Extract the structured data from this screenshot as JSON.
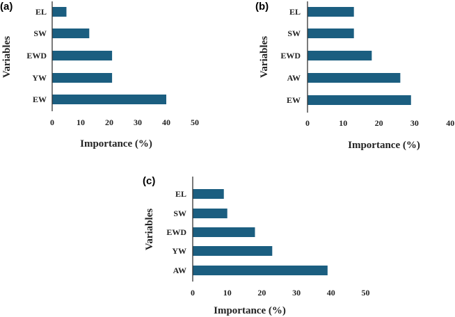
{
  "bar_color": "#1b5e80",
  "chart_data": [
    {
      "type": "bar",
      "orientation": "horizontal",
      "panel": "(a)",
      "categories": [
        "EL",
        "SW",
        "EWD",
        "YW",
        "EW"
      ],
      "values": [
        5,
        13,
        21,
        21,
        40
      ],
      "xlabel": "Importance (%)",
      "ylabel": "Variables",
      "xlim": [
        0,
        50
      ],
      "xticks": [
        "0",
        "10",
        "20",
        "30",
        "40",
        "50"
      ],
      "grid": false,
      "legend": "none"
    },
    {
      "type": "bar",
      "orientation": "horizontal",
      "panel": "(b)",
      "categories": [
        "EL",
        "SW",
        "EWD",
        "AW",
        "EW"
      ],
      "values": [
        13,
        13,
        18,
        26,
        29
      ],
      "xlabel": "Importance (%)",
      "ylabel": "Variables",
      "xlim": [
        0,
        40
      ],
      "xticks": [
        "0",
        "10",
        "20",
        "30",
        "40"
      ],
      "grid": false,
      "legend": "none"
    },
    {
      "type": "bar",
      "orientation": "horizontal",
      "panel": "(c)",
      "categories": [
        "EL",
        "SW",
        "EWD",
        "YW",
        "AW"
      ],
      "values": [
        9,
        10,
        18,
        23,
        39
      ],
      "xlabel": "Importance (%)",
      "ylabel": "Variables",
      "xlim": [
        0,
        50
      ],
      "xticks": [
        "0",
        "10",
        "20",
        "30",
        "40",
        "50"
      ],
      "grid": false,
      "legend": "none"
    }
  ]
}
